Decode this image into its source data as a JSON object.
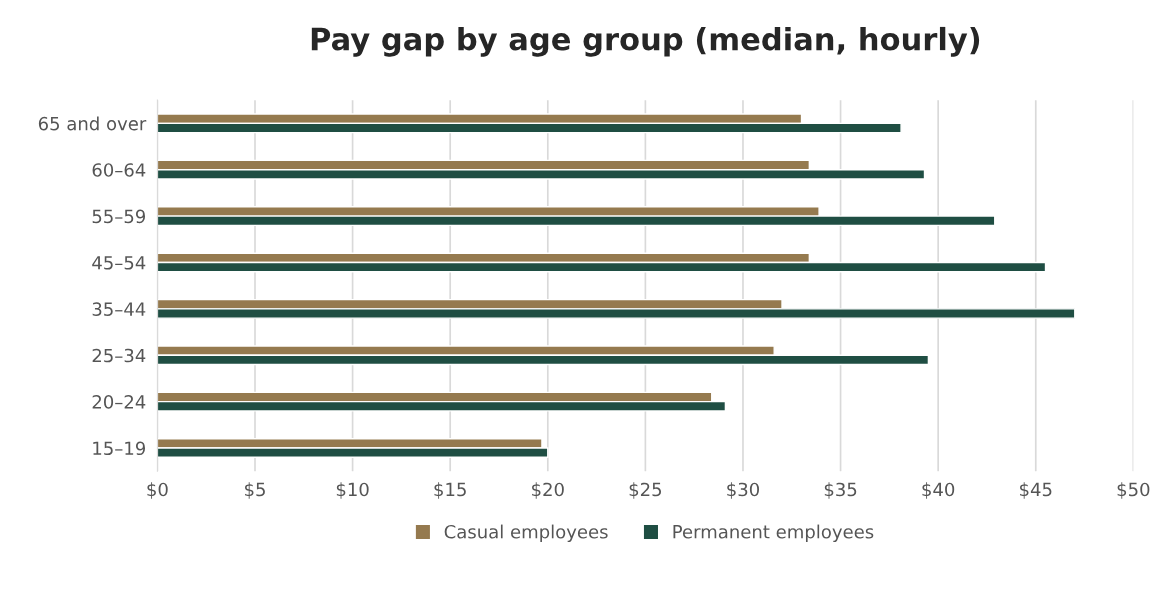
{
  "chart_data": {
    "type": "bar",
    "orientation": "horizontal",
    "title": "Pay gap by age group (median, hourly)",
    "categories": [
      "65 and over",
      "60–64",
      "55–59",
      "45–54",
      "35–44",
      "25–34",
      "20–24",
      "15–19"
    ],
    "series": [
      {
        "name": "Casual employees",
        "color": "#957a4f",
        "values": [
          33.0,
          33.4,
          33.9,
          33.4,
          32.0,
          31.6,
          28.4,
          19.7
        ]
      },
      {
        "name": "Permanent employees",
        "color": "#1f4e43",
        "values": [
          38.1,
          39.3,
          42.9,
          45.5,
          47.0,
          39.5,
          29.1,
          20.0
        ]
      }
    ],
    "xlim": [
      0,
      50
    ],
    "xticks": [
      {
        "value": 0,
        "label": "$0"
      },
      {
        "value": 5,
        "label": "$5"
      },
      {
        "value": 10,
        "label": "$10"
      },
      {
        "value": 15,
        "label": "$15"
      },
      {
        "value": 20,
        "label": "$20"
      },
      {
        "value": 25,
        "label": "$25"
      },
      {
        "value": 30,
        "label": "$30"
      },
      {
        "value": 35,
        "label": "$35"
      },
      {
        "value": 40,
        "label": "$40"
      },
      {
        "value": 45,
        "label": "$45"
      },
      {
        "value": 50,
        "label": "$50"
      }
    ],
    "grid": "x",
    "legend": "bottom"
  }
}
